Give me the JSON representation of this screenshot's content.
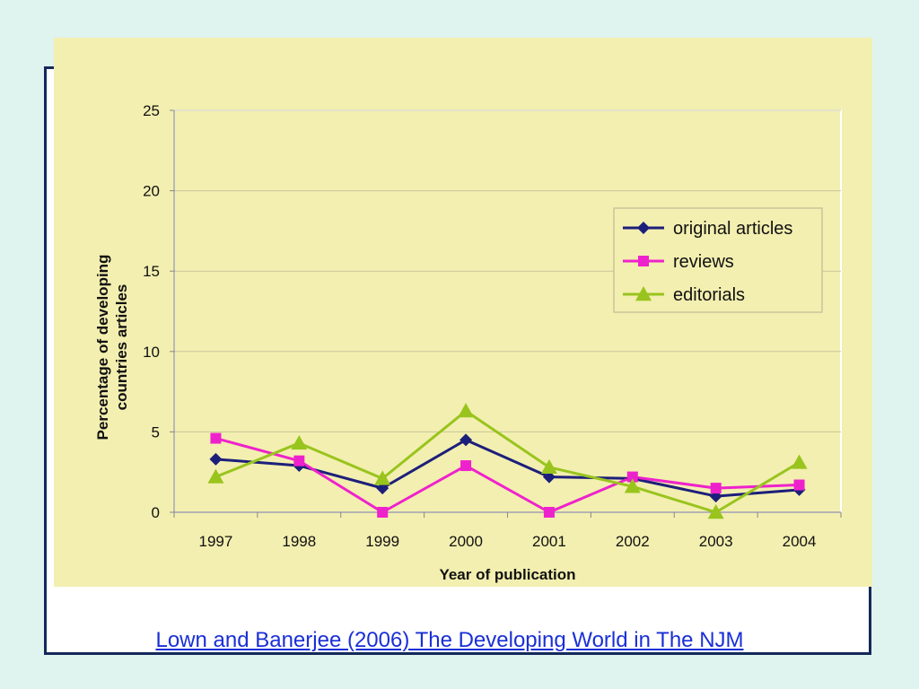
{
  "chart_data": {
    "type": "line",
    "title": "",
    "xlabel": "Year of publication",
    "ylabel_lines": [
      "Percentage of developing",
      "countries articles"
    ],
    "categories": [
      "1997",
      "1998",
      "1999",
      "2000",
      "2001",
      "2002",
      "2003",
      "2004"
    ],
    "ylim": [
      0,
      25
    ],
    "yticks": [
      "0",
      "5",
      "10",
      "15",
      "20",
      "25"
    ],
    "grid": true,
    "legend_position": "top-right",
    "series": [
      {
        "name": "original articles",
        "color": "#1c1f7a",
        "marker": "diamond",
        "values": [
          3.3,
          2.9,
          1.5,
          4.5,
          2.2,
          2.1,
          1.0,
          1.4
        ]
      },
      {
        "name": "reviews",
        "color": "#ee22cc",
        "marker": "square",
        "values": [
          4.6,
          3.2,
          0.0,
          2.9,
          0.0,
          2.2,
          1.5,
          1.7
        ]
      },
      {
        "name": "editorials",
        "color": "#99c41e",
        "marker": "triangle",
        "values": [
          2.2,
          4.3,
          2.1,
          6.3,
          2.8,
          1.6,
          0.0,
          3.1
        ]
      }
    ]
  },
  "caption": {
    "text": "Lown and Banerjee (2006) The Developing World in The NJM"
  }
}
